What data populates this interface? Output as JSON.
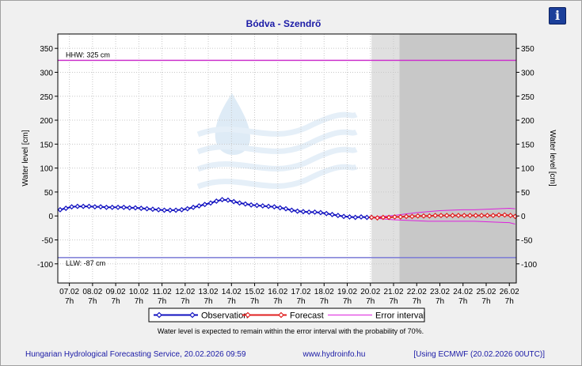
{
  "info_button": {
    "glyph": "i",
    "icon": "info-icon"
  },
  "footer": {
    "left": "Hungarian Hydrological Forecasting Service, 20.02.2026 09:59",
    "center": "www.hydroinfo.hu",
    "right": "[Using ECMWF (20.02.2026  00UTC)]"
  },
  "note": "Water level is expected to remain within the error interval with the probability of 70%.",
  "chart_data": {
    "type": "line",
    "title": "Bódva - Szendrő",
    "ylabel": "Water level [cm]",
    "ylim": [
      -140,
      380
    ],
    "yticks": [
      -100,
      -50,
      0,
      50,
      100,
      150,
      200,
      250,
      300,
      350
    ],
    "x_range": [
      6.5,
      26.3
    ],
    "x_ticks": [
      {
        "x": 7,
        "label": "07.02",
        "sub": "7h"
      },
      {
        "x": 8,
        "label": "08.02",
        "sub": "7h"
      },
      {
        "x": 9,
        "label": "09.02",
        "sub": "7h"
      },
      {
        "x": 10,
        "label": "10.02",
        "sub": "7h"
      },
      {
        "x": 11,
        "label": "11.02",
        "sub": "7h"
      },
      {
        "x": 12,
        "label": "12.02",
        "sub": "7h"
      },
      {
        "x": 13,
        "label": "13.02",
        "sub": "7h"
      },
      {
        "x": 14,
        "label": "14.02",
        "sub": "7h"
      },
      {
        "x": 15,
        "label": "15.02",
        "sub": "7h"
      },
      {
        "x": 16,
        "label": "16.02",
        "sub": "7h"
      },
      {
        "x": 17,
        "label": "17.02",
        "sub": "7h"
      },
      {
        "x": 18,
        "label": "18.02",
        "sub": "7h"
      },
      {
        "x": 19,
        "label": "19.02",
        "sub": "7h"
      },
      {
        "x": 20,
        "label": "20.02",
        "sub": "7h"
      },
      {
        "x": 21,
        "label": "21.02",
        "sub": "7h"
      },
      {
        "x": 22,
        "label": "22.02",
        "sub": "7h"
      },
      {
        "x": 23,
        "label": "23.02",
        "sub": "7h"
      },
      {
        "x": 24,
        "label": "24.02",
        "sub": "7h"
      },
      {
        "x": 25,
        "label": "25.02",
        "sub": "7h"
      },
      {
        "x": 26,
        "label": "26.02",
        "sub": "7h"
      }
    ],
    "hhw": {
      "value": 325,
      "label": "HHW: 325 cm",
      "color": "#cc33cc"
    },
    "llw": {
      "value": -87,
      "label": "LLW: -87 cm",
      "color": "#7a7ad6"
    },
    "forecast_shade": [
      {
        "from": 20.05,
        "to": 21.25,
        "color": "#e0e0e0"
      },
      {
        "from": 21.25,
        "to": 26.3,
        "color": "#c8c8c8"
      }
    ],
    "series": [
      {
        "name": "Observation",
        "color": "#1010c0",
        "x": [
          6.6,
          6.85,
          7.1,
          7.35,
          7.6,
          7.85,
          8.1,
          8.35,
          8.6,
          8.85,
          9.1,
          9.35,
          9.6,
          9.85,
          10.1,
          10.35,
          10.6,
          10.85,
          11.1,
          11.35,
          11.6,
          11.85,
          12.1,
          12.35,
          12.6,
          12.85,
          13.1,
          13.35,
          13.6,
          13.85,
          14.1,
          14.35,
          14.6,
          14.85,
          15.1,
          15.35,
          15.6,
          15.85,
          16.1,
          16.35,
          16.6,
          16.85,
          17.1,
          17.35,
          17.6,
          17.85,
          18.1,
          18.35,
          18.6,
          18.85,
          19.1,
          19.35,
          19.6,
          19.85,
          20.05
        ],
        "values": [
          13,
          16,
          19,
          20,
          20,
          20,
          19,
          19,
          18,
          18,
          18,
          18,
          17,
          17,
          16,
          15,
          14,
          13,
          12,
          12,
          12,
          13,
          15,
          18,
          21,
          24,
          27,
          31,
          34,
          33,
          30,
          27,
          25,
          23,
          22,
          21,
          20,
          19,
          17,
          15,
          12,
          10,
          9,
          8,
          8,
          7,
          5,
          3,
          1,
          -1,
          -2,
          -3,
          -2,
          -3,
          -3
        ]
      },
      {
        "name": "Forecast",
        "color": "#e02020",
        "x": [
          20.05,
          20.3,
          20.55,
          20.8,
          21.05,
          21.3,
          21.55,
          21.8,
          22.05,
          22.3,
          22.55,
          22.8,
          23.05,
          23.3,
          23.55,
          23.8,
          24.05,
          24.3,
          24.55,
          24.8,
          25.05,
          25.3,
          25.55,
          25.8,
          26.05,
          26.25
        ],
        "values": [
          -3,
          -4,
          -3,
          -3,
          -2,
          -2,
          -1,
          -1,
          0,
          0,
          0,
          1,
          1,
          1,
          1,
          1,
          1,
          1,
          1,
          1,
          1,
          1,
          2,
          2,
          1,
          -1
        ]
      }
    ],
    "error_interval": {
      "name": "Error interval",
      "color": "#dd22dd",
      "x": [
        20.05,
        20.5,
        21,
        21.5,
        22,
        22.5,
        23,
        23.5,
        24,
        24.5,
        25,
        25.5,
        26,
        26.25
      ],
      "upper": [
        -3,
        -1,
        1,
        4,
        7,
        9,
        11,
        12,
        13,
        13,
        14,
        15,
        16,
        15
      ],
      "lower": [
        -3,
        -6,
        -8,
        -9,
        -10,
        -11,
        -11,
        -11,
        -11,
        -11,
        -12,
        -13,
        -14,
        -17
      ]
    },
    "legend": [
      {
        "name": "Observation",
        "color": "#1010c0",
        "marker": "diamond"
      },
      {
        "name": "Forecast",
        "color": "#e02020",
        "marker": "diamond"
      },
      {
        "name": "Error interval",
        "color": "#dd22dd",
        "marker": "none"
      }
    ]
  }
}
